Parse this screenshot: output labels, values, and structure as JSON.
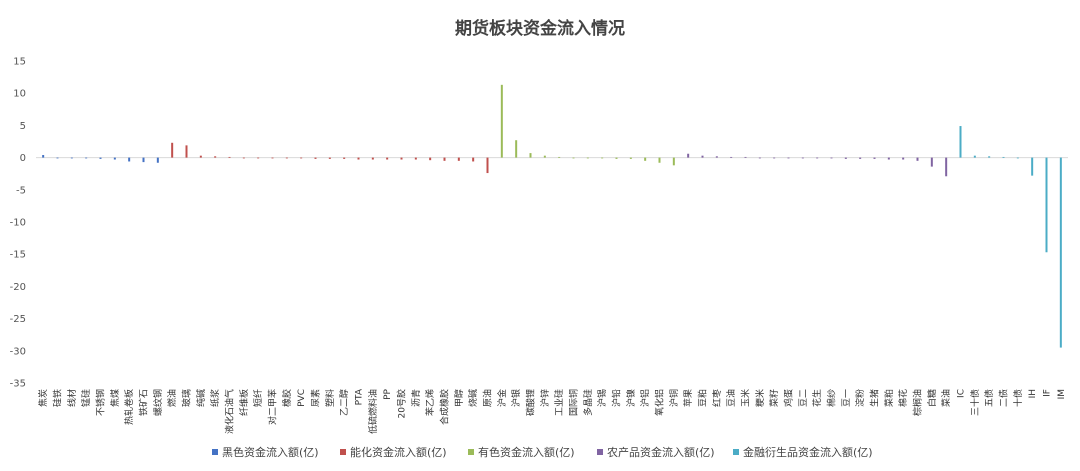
{
  "chart_data": {
    "type": "bar",
    "title": "期货板块资金流入情况",
    "xlabel": "",
    "ylabel": "",
    "ylim": [
      -35,
      15
    ],
    "yticks": [
      15,
      10,
      5,
      0,
      -5,
      -10,
      -15,
      -20,
      -25,
      -30,
      -35
    ],
    "grid": false,
    "legend_position": "bottom",
    "categories": [
      "焦炭",
      "硅铁",
      "线材",
      "锰硅",
      "不锈钢",
      "焦煤",
      "热轧卷板",
      "铁矿石",
      "螺纹钢",
      "燃油",
      "玻璃",
      "纯碱",
      "纸浆",
      "液化石油气",
      "纤维板",
      "短纤",
      "对二甲苯",
      "橡胶",
      "PVC",
      "尿素",
      "塑料",
      "乙二醇",
      "PTA",
      "低硫燃料油",
      "PP",
      "20号胶",
      "沥青",
      "苯乙烯",
      "合成橡胶",
      "甲醇",
      "烧碱",
      "原油",
      "沪金",
      "沪银",
      "碳酸锂",
      "沪锌",
      "工业硅",
      "国际铜",
      "多晶硅",
      "沪锡",
      "沪铅",
      "沪镍",
      "沪铝",
      "氧化铝",
      "沪铜",
      "苹果",
      "豆粕",
      "红枣",
      "豆油",
      "玉米",
      "粳米",
      "菜籽",
      "鸡蛋",
      "豆二",
      "花生",
      "棉纱",
      "豆一",
      "淀粉",
      "生猪",
      "菜粕",
      "棉花",
      "棕榈油",
      "白糖",
      "菜油",
      "IC",
      "三十债",
      "五债",
      "二债",
      "十债",
      "IH",
      "IF",
      "IM"
    ],
    "series": [
      {
        "name": "黑色资金流入额(亿)",
        "color": "#4472c4",
        "values": [
          0.4,
          -0.1,
          -0.1,
          -0.1,
          -0.2,
          -0.3,
          -0.6,
          -0.7,
          -0.8,
          null,
          null,
          null,
          null,
          null,
          null,
          null,
          null,
          null,
          null,
          null,
          null,
          null,
          null,
          null,
          null,
          null,
          null,
          null,
          null,
          null,
          null,
          null,
          null,
          null,
          null,
          null,
          null,
          null,
          null,
          null,
          null,
          null,
          null,
          null,
          null,
          null,
          null,
          null,
          null,
          null,
          null,
          null,
          null,
          null,
          null,
          null,
          null,
          null,
          null,
          null,
          null,
          null,
          null,
          null,
          null,
          null,
          null,
          null,
          null,
          null,
          null,
          null
        ]
      },
      {
        "name": "能化资金流入额(亿)",
        "color": "#c0504d",
        "values": [
          null,
          null,
          null,
          null,
          null,
          null,
          null,
          null,
          null,
          2.3,
          1.9,
          0.3,
          0.2,
          0.1,
          -0.1,
          -0.1,
          -0.1,
          -0.1,
          -0.1,
          -0.2,
          -0.2,
          -0.2,
          -0.3,
          -0.3,
          -0.3,
          -0.3,
          -0.3,
          -0.4,
          -0.5,
          -0.5,
          -0.6,
          -2.4,
          null,
          null,
          null,
          null,
          null,
          null,
          null,
          null,
          null,
          null,
          null,
          null,
          null,
          null,
          null,
          null,
          null,
          null,
          null,
          null,
          null,
          null,
          null,
          null,
          null,
          null,
          null,
          null,
          null,
          null,
          null,
          null,
          null,
          null,
          null,
          null,
          null,
          null,
          null,
          null
        ]
      },
      {
        "name": "有色资金流入额(亿)",
        "color": "#9bbb59",
        "values": [
          null,
          null,
          null,
          null,
          null,
          null,
          null,
          null,
          null,
          null,
          null,
          null,
          null,
          null,
          null,
          null,
          null,
          null,
          null,
          null,
          null,
          null,
          null,
          null,
          null,
          null,
          null,
          null,
          null,
          null,
          null,
          null,
          11.3,
          2.7,
          0.7,
          0.3,
          0.1,
          -0.1,
          -0.1,
          -0.1,
          -0.2,
          -0.2,
          -0.5,
          -0.8,
          -1.2,
          null,
          null,
          null,
          null,
          null,
          null,
          null,
          null,
          null,
          null,
          null,
          null,
          null,
          null,
          null,
          null,
          null,
          null,
          null,
          null,
          null,
          null,
          null,
          null,
          null,
          null,
          null
        ]
      },
      {
        "name": "农产品资金流入额(亿)",
        "color": "#8064a2",
        "values": [
          null,
          null,
          null,
          null,
          null,
          null,
          null,
          null,
          null,
          null,
          null,
          null,
          null,
          null,
          null,
          null,
          null,
          null,
          null,
          null,
          null,
          null,
          null,
          null,
          null,
          null,
          null,
          null,
          null,
          null,
          null,
          null,
          null,
          null,
          null,
          null,
          null,
          null,
          null,
          null,
          null,
          null,
          null,
          null,
          null,
          0.6,
          0.3,
          0.2,
          0.1,
          0.1,
          -0.1,
          -0.1,
          -0.1,
          -0.1,
          -0.1,
          -0.1,
          -0.2,
          -0.2,
          -0.2,
          -0.3,
          -0.3,
          -0.5,
          -1.4,
          -2.9,
          null,
          null,
          null,
          null,
          null,
          null,
          null,
          null
        ]
      },
      {
        "name": "金融衍生品资金流入额(亿)",
        "color": "#4bacc6",
        "values": [
          null,
          null,
          null,
          null,
          null,
          null,
          null,
          null,
          null,
          null,
          null,
          null,
          null,
          null,
          null,
          null,
          null,
          null,
          null,
          null,
          null,
          null,
          null,
          null,
          null,
          null,
          null,
          null,
          null,
          null,
          null,
          null,
          null,
          null,
          null,
          null,
          null,
          null,
          null,
          null,
          null,
          null,
          null,
          null,
          null,
          null,
          null,
          null,
          null,
          null,
          null,
          null,
          null,
          null,
          null,
          null,
          null,
          null,
          null,
          null,
          null,
          null,
          null,
          null,
          4.9,
          0.3,
          0.2,
          0.1,
          -0.1,
          -2.8,
          -14.7,
          -29.5
        ]
      }
    ]
  }
}
